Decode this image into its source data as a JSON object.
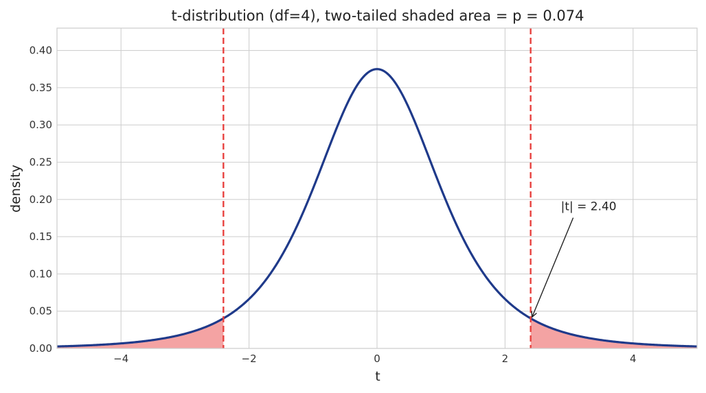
{
  "chart_data": {
    "type": "line",
    "title": "t-distribution (df=4), two-tailed shaded area = p = 0.074",
    "xlabel": "t",
    "ylabel": "density",
    "xlim": [
      -5,
      5
    ],
    "ylim": [
      0,
      0.43
    ],
    "x_ticks": [
      -4,
      -2,
      0,
      2,
      4
    ],
    "x_tick_labels": [
      "−4",
      "−2",
      "0",
      "2",
      "4"
    ],
    "y_ticks": [
      0.0,
      0.05,
      0.1,
      0.15,
      0.2,
      0.25,
      0.3,
      0.35,
      0.4
    ],
    "y_tick_labels": [
      "0.00",
      "0.05",
      "0.10",
      "0.15",
      "0.20",
      "0.25",
      "0.30",
      "0.35",
      "0.40"
    ],
    "grid": true,
    "df": 4,
    "t_stat": 2.4,
    "p_value": 0.074,
    "series": [
      {
        "x": [
          -5.0,
          -4.5,
          -4.0,
          -3.5,
          -3.0,
          -2.5,
          -2.4,
          -2.0,
          -1.5,
          -1.0,
          -0.5,
          0.0,
          0.5,
          1.0,
          1.5,
          2.0,
          2.4,
          2.5,
          3.0,
          3.5,
          4.0,
          4.5,
          5.0
        ],
        "y": [
          0.0051,
          0.0073,
          0.0067,
          0.011,
          0.0197,
          0.0361,
          0.0402,
          0.0663,
          0.12,
          0.2147,
          0.3223,
          0.375,
          0.3223,
          0.2147,
          0.12,
          0.0663,
          0.0402,
          0.0361,
          0.0197,
          0.011,
          0.0067,
          0.0073,
          0.0051
        ]
      }
    ],
    "critical_lines": [
      -2.4,
      2.4
    ],
    "annotation": {
      "text": "|t| = 2.40",
      "xy": [
        2.4,
        0.0402
      ],
      "xytext": [
        3.0,
        0.18
      ]
    },
    "colors": {
      "curve": "#1f3a8a",
      "shade": "#f4a3a3",
      "critical": "#e8423f",
      "grid": "#d0d0d0",
      "arrow": "#222222"
    }
  }
}
